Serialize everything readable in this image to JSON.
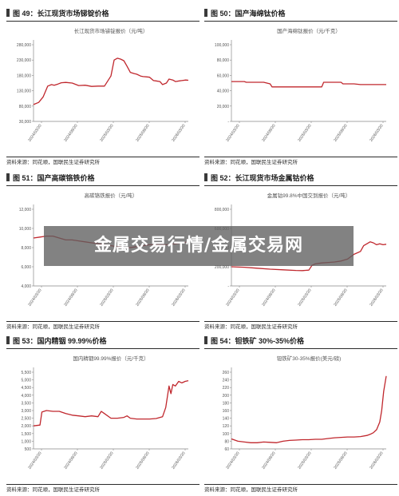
{
  "banner": {
    "text": "金属交易行情/金属交易网"
  },
  "colors": {
    "line": "#c0272d",
    "axis": "#888888",
    "text": "#555555",
    "title_rule": "#2b2b2b"
  },
  "panels": [
    {
      "title": "图 49：长江现货市场锑锭价格",
      "source": "资料来源：同花顺，国联民生证券研究所",
      "chart_data": {
        "type": "line",
        "title": "长江现货市场锑锭报价（元/吨）",
        "ylim": [
          30000,
          280000
        ],
        "yticks": [
          30000,
          80000,
          130000,
          180000,
          230000,
          280000
        ],
        "ytick_labels": [
          "30,000",
          "80,000",
          "130,000",
          "180,000",
          "230,000",
          "280,000"
        ],
        "xticks": [
          "2024/03/20",
          "2024/09/20",
          "2025/03/20",
          "2025/09/20",
          "2026/03/20"
        ],
        "xlim": [
          0,
          24
        ],
        "x": [
          0,
          0.8,
          1.5,
          2.2,
          2.8,
          3.2,
          3.8,
          4.3,
          5,
          6,
          7,
          8,
          9,
          10,
          11,
          12,
          12.5,
          13,
          13.5,
          14,
          14.5,
          15,
          15.6,
          16,
          16.6,
          17,
          17.6,
          18,
          18.6,
          19,
          19.6,
          20,
          20.6,
          21,
          21.6,
          22,
          22.6,
          23,
          23.6,
          24
        ],
        "y": [
          85000,
          92000,
          110000,
          145000,
          150000,
          148000,
          152000,
          156000,
          157000,
          155000,
          147000,
          148000,
          144000,
          145000,
          145000,
          178000,
          230000,
          236000,
          233000,
          228000,
          210000,
          190000,
          186000,
          184000,
          178000,
          176000,
          175000,
          174000,
          163000,
          162000,
          160000,
          150000,
          155000,
          168000,
          165000,
          160000,
          162000,
          163000,
          165000,
          164000
        ]
      }
    },
    {
      "title": "图 50：国产海绵钛价格",
      "source": "资料来源：同花顺，国联民生证券研究所",
      "chart_data": {
        "type": "line",
        "title": "国产海绵钛报价（元/千克）",
        "ylim": [
          0,
          100000
        ],
        "yticks": [
          0,
          20000,
          40000,
          60000,
          80000,
          100000
        ],
        "ytick_labels": [
          "-",
          "20,000",
          "40,000",
          "60,000",
          "80,000",
          "100,000"
        ],
        "xticks": [
          "2024/03/20",
          "2024/09/20",
          "2025/03/20",
          "2025/09/20",
          "2026/03/20"
        ],
        "xlim": [
          0,
          24
        ],
        "x": [
          0,
          2,
          2.3,
          5,
          6,
          6.3,
          10,
          10.3,
          13,
          14,
          14.3,
          16,
          17,
          17.3,
          19,
          20,
          21,
          24
        ],
        "y": [
          52000,
          52000,
          51000,
          51000,
          49000,
          45000,
          45000,
          45000,
          45000,
          45000,
          51000,
          51000,
          51000,
          49000,
          49000,
          48000,
          48000,
          48000
        ]
      }
    },
    {
      "title": "图 51：国产高碳铬铁价格",
      "source": "资料来源：同花顺，国联民生证券研究所",
      "chart_data": {
        "type": "line",
        "title": "高碳铬铁报价（元/吨）",
        "ylim": [
          4000,
          12000
        ],
        "yticks": [
          4000,
          6000,
          8000,
          10000,
          12000
        ],
        "ytick_labels": [
          "4,000",
          "6,000",
          "8,000",
          "10,000",
          "12,000"
        ],
        "xticks": [
          "2024/03/20",
          "2024/09/20",
          "2025/03/20",
          "2025/09/20",
          "2026/03/20"
        ],
        "xlim": [
          0,
          24
        ],
        "x": [
          0,
          1,
          2,
          3,
          4,
          5,
          6,
          7,
          8,
          9,
          10,
          11,
          12,
          13,
          14,
          15,
          16,
          17,
          18,
          19,
          20,
          21,
          22,
          23,
          24
        ],
        "y": [
          9000,
          9100,
          9200,
          9200,
          9000,
          8800,
          8800,
          8700,
          8600,
          8500,
          8400,
          8300,
          8200,
          8100,
          8000,
          8000,
          8100,
          8200,
          8300,
          8300,
          8300,
          8300,
          8400,
          8500,
          8600
        ]
      }
    },
    {
      "title": "图 52：长江现货市场金属钴价格",
      "source": "资料来源：同花顺，国联民生证券研究所",
      "chart_data": {
        "type": "line",
        "title": "金属钴99.8%中国交到报价（元/吨）",
        "ylim": [
          0,
          800000
        ],
        "yticks": [
          0,
          200000,
          400000,
          600000,
          800000
        ],
        "ytick_labels": [
          "-",
          "200,000",
          "400,000",
          "600,000",
          "800,000"
        ],
        "xticks": [
          "2024/03/20",
          "2024/09/20",
          "2025/03/20",
          "2025/09/20",
          "2026/03/20"
        ],
        "xlim": [
          0,
          24
        ],
        "x": [
          0,
          2,
          4,
          6,
          8,
          10,
          11,
          12,
          12.5,
          13,
          14,
          15,
          16,
          17,
          18,
          19,
          20,
          20.5,
          21,
          21.5,
          22,
          22.5,
          23,
          23.5,
          24
        ],
        "y": [
          200000,
          195000,
          185000,
          175000,
          168000,
          162000,
          160000,
          165000,
          215000,
          230000,
          240000,
          245000,
          250000,
          260000,
          280000,
          330000,
          360000,
          420000,
          440000,
          460000,
          450000,
          430000,
          440000,
          430000,
          435000
        ]
      }
    },
    {
      "title": "图 53：国内精铟 99.99%价格",
      "source": "资料来源：同花顺，国联民生证券研究所",
      "chart_data": {
        "type": "line",
        "title": "国内精铟99.99%报价（元/千克）",
        "ylim": [
          500,
          5500
        ],
        "yticks": [
          500,
          1000,
          1500,
          2000,
          2500,
          3000,
          3500,
          4000,
          4500,
          5000,
          5500
        ],
        "ytick_labels": [
          "500",
          "1,000",
          "1,500",
          "2,000",
          "2,500",
          "3,000",
          "3,500",
          "4,000",
          "4,500",
          "5,000",
          "5,500"
        ],
        "xticks": [
          "2024/03/20",
          "2024/09/20",
          "2025/03/20",
          "2025/09/20",
          "2026/03/20"
        ],
        "xlim": [
          0,
          24
        ],
        "x": [
          0,
          1,
          1.3,
          2,
          3,
          4,
          5,
          6,
          7,
          8,
          9,
          10,
          10.5,
          11,
          12,
          13,
          14,
          14.5,
          15,
          16,
          17,
          18,
          19,
          20,
          20.5,
          21,
          21.3,
          21.6,
          22,
          22.5,
          23,
          23.5,
          24
        ],
        "y": [
          2000,
          2050,
          2900,
          3000,
          2950,
          2950,
          2800,
          2700,
          2650,
          2600,
          2650,
          2600,
          2950,
          2800,
          2500,
          2500,
          2550,
          2650,
          2500,
          2450,
          2450,
          2450,
          2480,
          2600,
          3200,
          4600,
          4100,
          4700,
          4600,
          4900,
          4800,
          4900,
          4950
        ]
      }
    },
    {
      "title": "图 54：钽铁矿 30%-35%价格",
      "source": "资料来源：同花顺，国联民生证券研究所",
      "chart_data": {
        "type": "line",
        "title": "钽铁矿30-35%报价(美元/磅)",
        "ylim": [
          60,
          260
        ],
        "yticks": [
          60,
          80,
          100,
          120,
          140,
          160,
          180,
          200,
          220,
          240,
          260
        ],
        "ytick_labels": [
          "60",
          "80",
          "100",
          "120",
          "140",
          "160",
          "180",
          "200",
          "220",
          "240",
          "260"
        ],
        "xticks": [
          "2024/03/20",
          "2024/09/20",
          "2025/03/20",
          "2025/09/20",
          "2026/03/20"
        ],
        "xlim": [
          0,
          24
        ],
        "x": [
          0,
          1,
          2,
          3,
          4,
          5,
          6,
          7,
          8,
          9,
          10,
          11,
          12,
          13,
          14,
          15,
          16,
          17,
          18,
          19,
          20,
          21,
          21.5,
          22,
          22.5,
          23,
          23.3,
          23.6,
          24
        ],
        "y": [
          86,
          80,
          78,
          76,
          76,
          78,
          77,
          76,
          80,
          82,
          83,
          84,
          84,
          85,
          85,
          87,
          89,
          90,
          91,
          91,
          92,
          95,
          98,
          102,
          110,
          130,
          160,
          210,
          250
        ]
      }
    }
  ]
}
